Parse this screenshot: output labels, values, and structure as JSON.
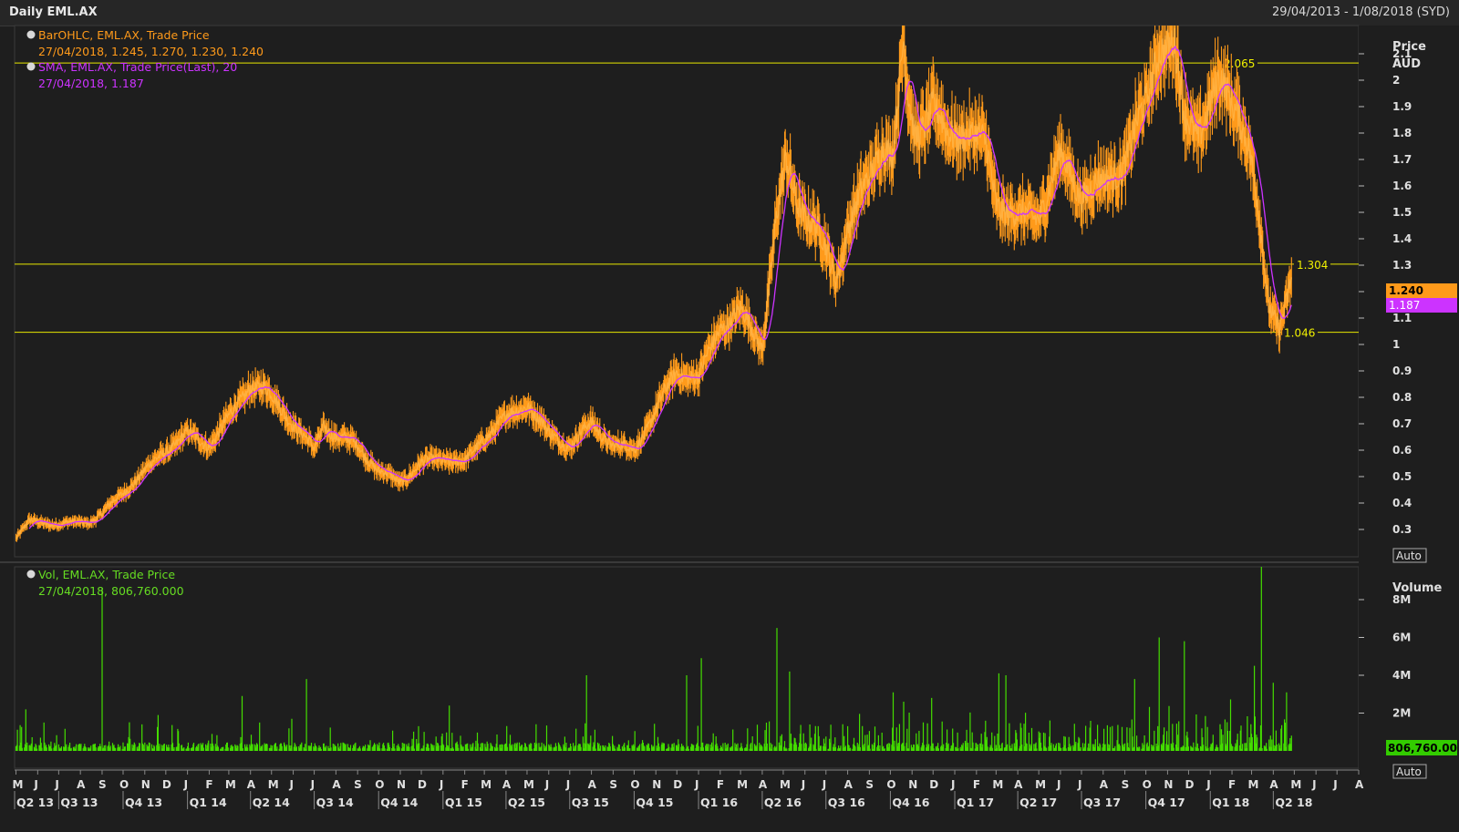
{
  "window": {
    "title": "Daily EML.AX",
    "date_range": "29/04/2013 - 1/08/2018 (SYD)"
  },
  "price_panel": {
    "axis_title": "Price",
    "axis_unit": "AUD",
    "auto_label": "Auto",
    "legend": [
      {
        "label": "BarOHLC, EML.AX, Trade Price",
        "value": "27/04/2018, 1.245, 1.270, 1.230, 1.240",
        "color": "#ff9a1a"
      },
      {
        "label": "SMA, EML.AX, Trade Price(Last),  20",
        "value": "27/04/2018, 1.187",
        "color": "#cc33ff"
      }
    ],
    "last_price_tag": "1.240",
    "sma_tag": "1.187",
    "horizontal_lines": [
      {
        "value": 2.065,
        "label": "2.065"
      },
      {
        "value": 1.304,
        "label": "1.304"
      },
      {
        "value": 1.046,
        "label": "1.046"
      }
    ]
  },
  "volume_panel": {
    "axis_title": "Volume",
    "auto_label": "Auto",
    "legend_label": "Vol, EML.AX, Trade Price",
    "legend_value": "27/04/2018, 806,760.000",
    "last_volume_tag": "806,760.00",
    "ticks": [
      "2M",
      "4M",
      "6M",
      "8M"
    ]
  },
  "x_axis": {
    "months": [
      "M",
      "J",
      "J",
      "A",
      "S",
      "O",
      "N",
      "D",
      "J",
      "F",
      "M",
      "A",
      "M",
      "J",
      "J",
      "A",
      "S",
      "O",
      "N",
      "D",
      "J",
      "F",
      "M",
      "A",
      "M",
      "J",
      "J",
      "A",
      "S",
      "O",
      "N",
      "D",
      "J",
      "F",
      "M",
      "A",
      "M",
      "J",
      "J",
      "A",
      "S",
      "O",
      "N",
      "D",
      "J",
      "F",
      "M",
      "A",
      "M",
      "J",
      "J",
      "A",
      "S",
      "O",
      "N",
      "D",
      "J",
      "F",
      "M",
      "A",
      "M",
      "J",
      "J",
      "A"
    ],
    "quarters": [
      "Q2 13",
      "Q3 13",
      "Q4 13",
      "Q1 14",
      "Q2 14",
      "Q3 14",
      "Q4 14",
      "Q1 15",
      "Q2 15",
      "Q3 15",
      "Q4 15",
      "Q1 16",
      "Q2 16",
      "Q3 16",
      "Q4 16",
      "Q1 17",
      "Q2 17",
      "Q3 17",
      "Q4 17",
      "Q1 18",
      "Q2 18"
    ]
  },
  "chart_data": {
    "type": "line",
    "title": "Daily EML.AX",
    "ylabel": "Price AUD",
    "ylim": [
      0.2,
      2.2
    ],
    "yticks": [
      0.3,
      0.4,
      0.5,
      0.6,
      0.7,
      0.8,
      0.9,
      1,
      1.1,
      1.2,
      1.3,
      1.4,
      1.5,
      1.6,
      1.7,
      1.8,
      1.9,
      2,
      2.1
    ],
    "ytick_labels": [
      "0.3",
      "0.4",
      "0.5",
      "0.6",
      "0.7",
      "0.8",
      "0.9",
      "1",
      "1.1",
      "1.2",
      "1.3",
      "1.4",
      "1.5",
      "1.6",
      "1.7",
      "1.8",
      "1.9",
      "2",
      "2.1"
    ],
    "price_keypoints": [
      [
        "2013-05-01",
        0.27
      ],
      [
        "2013-05-20",
        0.33
      ],
      [
        "2013-07-01",
        0.32
      ],
      [
        "2013-08-15",
        0.33
      ],
      [
        "2013-09-01",
        0.36
      ],
      [
        "2013-10-01",
        0.44
      ],
      [
        "2013-11-01",
        0.52
      ],
      [
        "2013-12-01",
        0.6
      ],
      [
        "2014-01-01",
        0.66
      ],
      [
        "2014-02-01",
        0.62
      ],
      [
        "2014-03-01",
        0.72
      ],
      [
        "2014-04-01",
        0.85
      ],
      [
        "2014-04-20",
        0.83
      ],
      [
        "2014-05-15",
        0.76
      ],
      [
        "2014-06-10",
        0.67
      ],
      [
        "2014-07-01",
        0.6
      ],
      [
        "2014-07-15",
        0.7
      ],
      [
        "2014-08-01",
        0.65
      ],
      [
        "2014-09-01",
        0.62
      ],
      [
        "2014-10-01",
        0.52
      ],
      [
        "2014-11-01",
        0.48
      ],
      [
        "2014-12-01",
        0.55
      ],
      [
        "2015-01-01",
        0.57
      ],
      [
        "2015-02-01",
        0.55
      ],
      [
        "2015-03-01",
        0.65
      ],
      [
        "2015-04-01",
        0.72
      ],
      [
        "2015-05-01",
        0.78
      ],
      [
        "2015-06-01",
        0.66
      ],
      [
        "2015-07-01",
        0.62
      ],
      [
        "2015-08-01",
        0.7
      ],
      [
        "2015-09-01",
        0.62
      ],
      [
        "2015-10-01",
        0.6
      ],
      [
        "2015-11-01",
        0.75
      ],
      [
        "2015-12-01",
        0.9
      ],
      [
        "2016-01-01",
        0.87
      ],
      [
        "2016-02-01",
        1.07
      ],
      [
        "2016-03-01",
        1.12
      ],
      [
        "2016-04-01",
        1.0
      ],
      [
        "2016-04-20",
        1.45
      ],
      [
        "2016-05-05",
        1.68
      ],
      [
        "2016-05-20",
        1.55
      ],
      [
        "2016-06-15",
        1.45
      ],
      [
        "2016-07-15",
        1.25
      ],
      [
        "2016-08-01",
        1.45
      ],
      [
        "2016-09-01",
        1.62
      ],
      [
        "2016-09-20",
        1.78
      ],
      [
        "2016-10-05",
        1.72
      ],
      [
        "2016-10-20",
        2.12
      ],
      [
        "2016-10-25",
        1.95
      ],
      [
        "2016-11-05",
        1.8
      ],
      [
        "2016-12-01",
        1.9
      ],
      [
        "2016-12-20",
        1.78
      ],
      [
        "2017-01-15",
        1.82
      ],
      [
        "2017-02-15",
        1.74
      ],
      [
        "2017-03-01",
        1.55
      ],
      [
        "2017-04-01",
        1.47
      ],
      [
        "2017-05-01",
        1.5
      ],
      [
        "2017-06-01",
        1.7
      ],
      [
        "2017-07-01",
        1.58
      ],
      [
        "2017-08-01",
        1.6
      ],
      [
        "2017-09-01",
        1.7
      ],
      [
        "2017-10-01",
        1.9
      ],
      [
        "2017-10-20",
        2.15
      ],
      [
        "2017-11-10",
        2.12
      ],
      [
        "2017-11-25",
        1.85
      ],
      [
        "2017-12-15",
        1.82
      ],
      [
        "2018-01-15",
        1.98
      ],
      [
        "2018-02-10",
        1.9
      ],
      [
        "2018-02-25",
        1.75
      ],
      [
        "2018-03-10",
        1.5
      ],
      [
        "2018-03-25",
        1.15
      ],
      [
        "2018-04-10",
        1.08
      ],
      [
        "2018-04-27",
        1.24
      ]
    ],
    "volume_ticks": [
      2,
      4,
      6,
      8
    ],
    "volume_unit": "M",
    "volume_spikes": [
      [
        "2013-09-01",
        8.6
      ],
      [
        "2013-05-15",
        2.2
      ],
      [
        "2013-06-10",
        1.5
      ],
      [
        "2013-11-20",
        1.9
      ],
      [
        "2014-03-20",
        2.9
      ],
      [
        "2014-06-20",
        3.8
      ],
      [
        "2015-01-10",
        2.4
      ],
      [
        "2015-07-25",
        4.0
      ],
      [
        "2015-12-15",
        4.0
      ],
      [
        "2016-01-05",
        4.9
      ],
      [
        "2016-04-22",
        6.5
      ],
      [
        "2016-05-10",
        4.2
      ],
      [
        "2016-10-05",
        3.1
      ],
      [
        "2016-10-20",
        2.6
      ],
      [
        "2017-03-05",
        4.1
      ],
      [
        "2017-03-15",
        4.0
      ],
      [
        "2017-09-15",
        3.8
      ],
      [
        "2017-10-20",
        6.0
      ],
      [
        "2017-11-25",
        5.8
      ],
      [
        "2018-03-05",
        4.5
      ],
      [
        "2018-03-15",
        9.8
      ],
      [
        "2018-04-01",
        3.6
      ],
      [
        "2018-04-20",
        3.1
      ],
      [
        "2018-04-27",
        0.81
      ]
    ]
  }
}
